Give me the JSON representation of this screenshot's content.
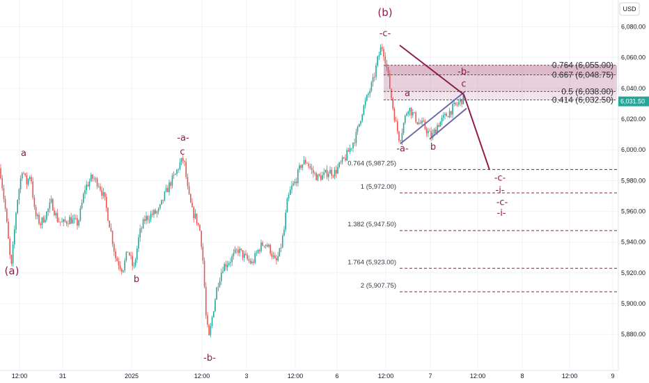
{
  "chart_data": {
    "type": "candlestick",
    "currency": "USD",
    "y_axis": {
      "range": [
        5862,
        6092
      ],
      "ticks": [
        5880,
        5900,
        5920,
        5940,
        5960,
        5980,
        6000,
        6020,
        6040,
        6060,
        6080
      ],
      "tick_labels": [
        "5,880.00",
        "5,900.00",
        "5,920.00",
        "5,940.00",
        "5,960.00",
        "5,980.00",
        "6,000.00",
        "6,020.00",
        "6,040.00",
        "6,060.00",
        "6,080.00"
      ]
    },
    "x_axis": {
      "range": [
        0,
        880
      ],
      "ticks": [
        {
          "label": "12:00",
          "t": 28
        },
        {
          "label": "31",
          "t": 90
        },
        {
          "label": "2025",
          "t": 189
        },
        {
          "label": "12:00",
          "t": 290
        },
        {
          "label": "3",
          "t": 354
        },
        {
          "label": "12:00",
          "t": 424
        },
        {
          "label": "6",
          "t": 484
        },
        {
          "label": "12:00",
          "t": 554
        },
        {
          "label": "7",
          "t": 618
        },
        {
          "label": "12:00",
          "t": 686
        },
        {
          "label": "8",
          "t": 750
        },
        {
          "label": "12:00",
          "t": 818
        },
        {
          "label": "9",
          "t": 880
        }
      ]
    },
    "price_path": [
      [
        0,
        5988
      ],
      [
        8,
        5960
      ],
      [
        16,
        5922
      ],
      [
        24,
        5965
      ],
      [
        32,
        5988
      ],
      [
        38,
        5978
      ],
      [
        44,
        5985
      ],
      [
        50,
        5958
      ],
      [
        58,
        5952
      ],
      [
        66,
        5958
      ],
      [
        74,
        5966
      ],
      [
        82,
        5955
      ],
      [
        90,
        5952
      ],
      [
        100,
        5955
      ],
      [
        112,
        5952
      ],
      [
        122,
        5975
      ],
      [
        132,
        5982
      ],
      [
        142,
        5978
      ],
      [
        150,
        5968
      ],
      [
        158,
        5950
      ],
      [
        166,
        5930
      ],
      [
        176,
        5922
      ],
      [
        184,
        5935
      ],
      [
        192,
        5922
      ],
      [
        200,
        5945
      ],
      [
        208,
        5955
      ],
      [
        218,
        5958
      ],
      [
        228,
        5960
      ],
      [
        236,
        5970
      ],
      [
        244,
        5978
      ],
      [
        252,
        5984
      ],
      [
        258,
        5991
      ],
      [
        264,
        5994
      ],
      [
        270,
        5972
      ],
      [
        276,
        5960
      ],
      [
        282,
        5955
      ],
      [
        288,
        5946
      ],
      [
        292,
        5925
      ],
      [
        296,
        5890
      ],
      [
        300,
        5877
      ],
      [
        306,
        5895
      ],
      [
        312,
        5912
      ],
      [
        320,
        5924
      ],
      [
        330,
        5928
      ],
      [
        342,
        5935
      ],
      [
        352,
        5930
      ],
      [
        362,
        5926
      ],
      [
        372,
        5936
      ],
      [
        380,
        5940
      ],
      [
        388,
        5935
      ],
      [
        396,
        5926
      ],
      [
        402,
        5934
      ],
      [
        408,
        5948
      ],
      [
        412,
        5965
      ],
      [
        418,
        5975
      ],
      [
        424,
        5979
      ],
      [
        432,
        5990
      ],
      [
        440,
        5993
      ],
      [
        448,
        5986
      ],
      [
        456,
        5982
      ],
      [
        464,
        5983
      ],
      [
        472,
        5986
      ],
      [
        480,
        5985
      ],
      [
        488,
        5990
      ],
      [
        496,
        5995
      ],
      [
        504,
        6002
      ],
      [
        512,
        6010
      ],
      [
        520,
        6025
      ],
      [
        528,
        6035
      ],
      [
        536,
        6045
      ],
      [
        542,
        6058
      ],
      [
        548,
        6068
      ],
      [
        552,
        6062
      ],
      [
        556,
        6052
      ],
      [
        560,
        6040
      ],
      [
        564,
        6028
      ],
      [
        568,
        6018
      ],
      [
        574,
        6006
      ],
      [
        580,
        6018
      ],
      [
        586,
        6028
      ],
      [
        592,
        6024
      ],
      [
        600,
        6018
      ],
      [
        608,
        6016
      ],
      [
        614,
        6012
      ],
      [
        620,
        6008
      ],
      [
        628,
        6016
      ],
      [
        636,
        6020
      ],
      [
        644,
        6024
      ],
      [
        652,
        6028
      ],
      [
        660,
        6031
      ],
      [
        666,
        6034
      ]
    ],
    "fib_upper": [
      {
        "ratio": "0.764",
        "price": 6055.0,
        "label": "0.764 (6,055.00)"
      },
      {
        "ratio": "0.667",
        "price": 6048.75,
        "label": "0.667 (6,048.75)"
      },
      {
        "ratio": "0.5",
        "price": 6038.0,
        "label": "0.5 (6,038.00)"
      },
      {
        "ratio": "0.414",
        "price": 6032.5,
        "label": "0.414 (6,032.50)"
      }
    ],
    "fib_lower": [
      {
        "ratio": "0.764",
        "price": 5987.25,
        "label": "0.764 (5,987.25)"
      },
      {
        "ratio": "1",
        "price": 5972.0,
        "label": "1 (5,972.00)"
      },
      {
        "ratio": "1.382",
        "price": 5947.5,
        "label": "1.382 (5,947.50)"
      },
      {
        "ratio": "1.764",
        "price": 5923.0,
        "label": "1.764 (5,923.00)"
      },
      {
        "ratio": "2",
        "price": 5907.75,
        "label": "2 (5,907.75)"
      }
    ],
    "current_price": {
      "price": 6031.5,
      "label": "6,031.50"
    },
    "wave_labels": [
      {
        "text": "(a)",
        "t": 17,
        "price": 5919
      },
      {
        "text": "a",
        "t": 34,
        "price": 5996
      },
      {
        "text": "b",
        "t": 196,
        "price": 5914
      },
      {
        "text": "-a-",
        "t": 263,
        "price": 6006
      },
      {
        "text": "c",
        "t": 262,
        "price": 5997
      },
      {
        "text": "-b-",
        "t": 301,
        "price": 5863
      },
      {
        "text": "(b)",
        "t": 553,
        "price": 6087
      },
      {
        "text": "-c-",
        "t": 553,
        "price": 6074
      },
      {
        "text": "a",
        "t": 585,
        "price": 6035
      },
      {
        "text": "-a-",
        "t": 578,
        "price": 5999
      },
      {
        "text": "b",
        "t": 622,
        "price": 6000
      },
      {
        "text": "-b-",
        "t": 666,
        "price": 6049
      },
      {
        "text": "c",
        "t": 666,
        "price": 6041
      },
      {
        "text": "-c-",
        "t": 718,
        "price": 5980
      },
      {
        "text": "-i-",
        "t": 718,
        "price": 5972
      },
      {
        "text": "-c-",
        "t": 721,
        "price": 5964
      },
      {
        "text": "-i-",
        "t": 720,
        "price": 5957
      }
    ],
    "projection": [
      [
        574,
        6068
      ],
      [
        666,
        6036
      ],
      [
        703,
        5987
      ]
    ],
    "wedge": [
      [
        [
          575,
          6004
        ],
        [
          668,
          6038
        ]
      ],
      [
        [
          617,
          6007
        ],
        [
          670,
          6027
        ]
      ]
    ]
  }
}
